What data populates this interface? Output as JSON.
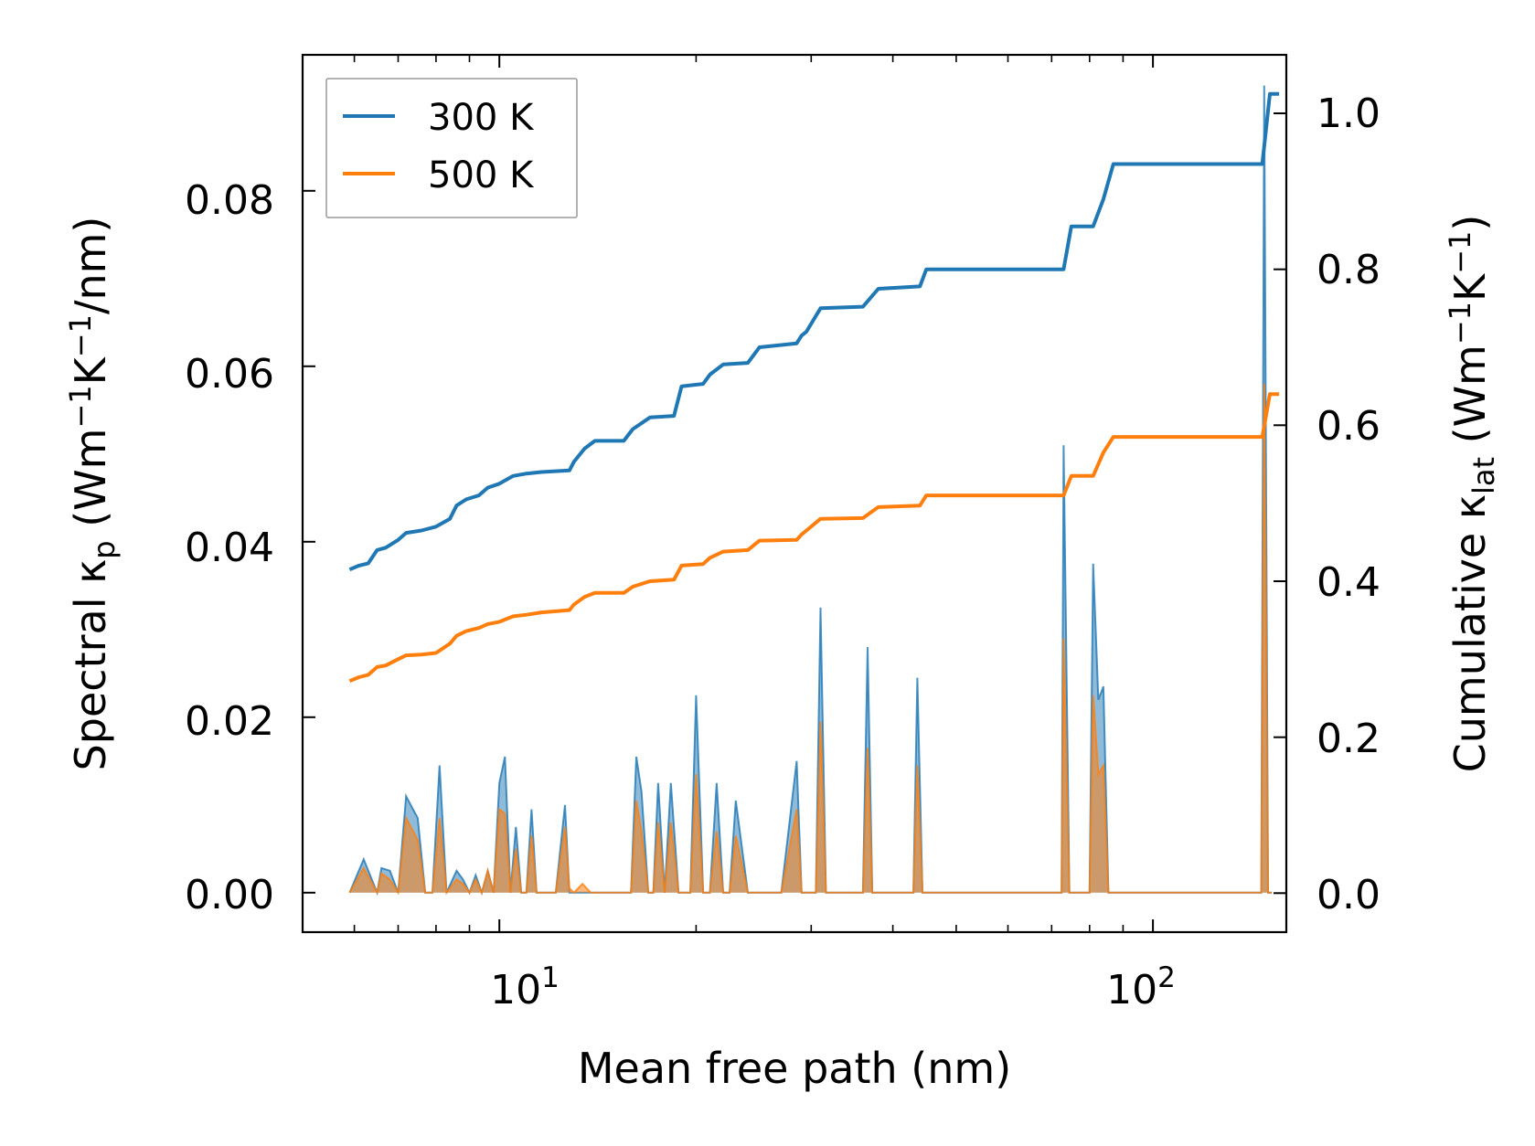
{
  "chart_data": {
    "type": "line",
    "xscale": "log",
    "xlabel": "Mean free path (nm)",
    "ylabel_left": "Spectral κp (Wm−1K−1/nm)",
    "ylabel_right": "Cumulative κlat (Wm−1K−1)",
    "xlim": [
      5,
      160
    ],
    "ylim_left": [
      -0.0045,
      0.0955
    ],
    "ylim_right": [
      -0.05,
      1.075
    ],
    "x_ticks": [
      10,
      100
    ],
    "x_tick_labels": [
      "10",
      "1",
      "10",
      "2"
    ],
    "y_left_ticks": [
      "0.00",
      "0.02",
      "0.04",
      "0.06",
      "0.08"
    ],
    "y_left_tick_values": [
      0,
      0.02,
      0.04,
      0.06,
      0.08
    ],
    "y_right_ticks": [
      "0.0",
      "0.2",
      "0.4",
      "0.6",
      "0.8",
      "1.0"
    ],
    "y_right_tick_values": [
      0,
      0.2,
      0.4,
      0.6,
      0.8,
      1.0
    ],
    "legend": {
      "placement": "top-left",
      "entries": [
        "300 K",
        "500 K"
      ]
    },
    "colors": {
      "300K": "#1f77b4",
      "500K": "#ff7f0e"
    },
    "cumulative": [
      {
        "name": "300 K",
        "x": [
          5.9,
          6.1,
          6.3,
          6.5,
          6.7,
          7.0,
          7.2,
          7.6,
          8.0,
          8.4,
          8.6,
          8.9,
          9.3,
          9.6,
          10.0,
          10.5,
          11.0,
          11.6,
          12.8,
          13.0,
          13.5,
          14.0,
          15.5,
          16.0,
          17.0,
          18.5,
          19.0,
          20.5,
          21.0,
          22.0,
          24.0,
          25.0,
          28.5,
          29.0,
          29.5,
          31.0,
          36.0,
          38.0,
          44.0,
          45.0,
          73.0,
          75.0,
          81.0,
          84.0,
          87.0,
          147.0,
          151.0,
          156.0
        ],
        "y": [
          0.415,
          0.42,
          0.423,
          0.44,
          0.443,
          0.453,
          0.462,
          0.465,
          0.47,
          0.48,
          0.497,
          0.505,
          0.51,
          0.52,
          0.525,
          0.535,
          0.538,
          0.54,
          0.542,
          0.553,
          0.57,
          0.58,
          0.58,
          0.595,
          0.61,
          0.612,
          0.65,
          0.653,
          0.665,
          0.678,
          0.68,
          0.7,
          0.705,
          0.715,
          0.72,
          0.75,
          0.752,
          0.775,
          0.778,
          0.8,
          0.8,
          0.855,
          0.855,
          0.89,
          0.935,
          0.935,
          1.025,
          1.025
        ]
      },
      {
        "name": "500 K",
        "x": [
          5.9,
          6.1,
          6.3,
          6.5,
          6.7,
          7.0,
          7.2,
          7.6,
          8.0,
          8.4,
          8.6,
          8.9,
          9.3,
          9.6,
          10.0,
          10.5,
          11.0,
          11.6,
          12.8,
          13.0,
          13.5,
          14.0,
          15.5,
          16.0,
          17.0,
          18.5,
          19.0,
          20.5,
          21.0,
          22.0,
          24.0,
          25.0,
          28.5,
          29.0,
          29.5,
          31.0,
          36.0,
          38.0,
          44.0,
          45.0,
          73.0,
          75.0,
          81.0,
          84.0,
          87.0,
          147.0,
          151.0,
          156.0
        ],
        "y": [
          0.272,
          0.277,
          0.28,
          0.29,
          0.292,
          0.3,
          0.305,
          0.306,
          0.308,
          0.32,
          0.33,
          0.336,
          0.34,
          0.345,
          0.348,
          0.355,
          0.357,
          0.36,
          0.363,
          0.37,
          0.38,
          0.385,
          0.385,
          0.393,
          0.4,
          0.402,
          0.42,
          0.422,
          0.43,
          0.438,
          0.44,
          0.452,
          0.453,
          0.46,
          0.465,
          0.48,
          0.481,
          0.495,
          0.497,
          0.51,
          0.51,
          0.535,
          0.535,
          0.565,
          0.585,
          0.585,
          0.64,
          0.64
        ]
      }
    ],
    "spectral": [
      {
        "name": "300 K",
        "x": [
          5.9,
          6.2,
          6.5,
          6.6,
          6.8,
          7.0,
          7.2,
          7.5,
          7.7,
          7.9,
          8.1,
          8.3,
          8.6,
          8.8,
          9.0,
          9.2,
          9.4,
          9.6,
          9.8,
          10.0,
          10.2,
          10.4,
          10.6,
          10.8,
          11.0,
          11.2,
          11.4,
          11.6,
          11.9,
          12.2,
          12.6,
          12.8,
          13.0,
          13.4,
          13.8,
          14.2,
          14.6,
          15.0,
          15.5,
          15.9,
          16.2,
          16.5,
          16.9,
          17.2,
          17.5,
          17.9,
          18.3,
          18.8,
          19.2,
          19.6,
          20.0,
          20.5,
          21.0,
          21.5,
          22.0,
          22.5,
          23.0,
          24.0,
          25.0,
          26.0,
          27.0,
          28.5,
          29.0,
          29.5,
          30.5,
          31.0,
          31.6,
          33.0,
          35.0,
          36.0,
          36.6,
          37.2,
          38.0,
          41.0,
          43.0,
          43.6,
          44.4,
          46.0,
          70.0,
          72.5,
          73.0,
          74.5,
          76.0,
          80.0,
          81.0,
          82.5,
          84.0,
          85.5,
          87.0,
          89.0,
          143.0,
          146.5,
          148.0,
          150.0,
          152.0
        ],
        "y": [
          0.0,
          0.0038,
          0.0,
          0.0028,
          0.0025,
          0.0,
          0.011,
          0.0085,
          0.0,
          0.0,
          0.0145,
          0.0,
          0.0025,
          0.0015,
          0.0,
          0.002,
          0.0,
          0.0025,
          0.0,
          0.0125,
          0.0155,
          0.0,
          0.0075,
          0.0,
          0.0,
          0.0095,
          0.0,
          0.0,
          0.0,
          0.0,
          0.01,
          0.0,
          0.0,
          0.0,
          0.0,
          0.0,
          0.0,
          0.0,
          0.0,
          0.0,
          0.0155,
          0.0115,
          0.0,
          0.0,
          0.0125,
          0.0,
          0.0125,
          0.0,
          0.0,
          0.0,
          0.0225,
          0.0,
          0.0,
          0.0125,
          0.0,
          0.0,
          0.0105,
          0.0,
          0.0,
          0.0,
          0.0,
          0.015,
          0.0,
          0.0,
          0.0,
          0.0325,
          0.0,
          0.0,
          0.0,
          0.0,
          0.028,
          0.0,
          0.0,
          0.0,
          0.0,
          0.0245,
          0.0,
          0.0,
          0.0,
          0.0,
          0.051,
          0.0,
          0.0,
          0.0,
          0.0375,
          0.022,
          0.0235,
          0.0,
          0.0,
          0.0,
          0.0,
          0.0,
          0.092,
          0.0,
          0.0
        ]
      },
      {
        "name": "500 K",
        "x": [
          5.9,
          6.2,
          6.5,
          6.6,
          6.8,
          7.0,
          7.2,
          7.5,
          7.7,
          7.9,
          8.1,
          8.3,
          8.6,
          8.8,
          9.0,
          9.2,
          9.4,
          9.6,
          9.8,
          10.0,
          10.2,
          10.4,
          10.6,
          10.8,
          11.0,
          11.2,
          11.4,
          11.6,
          11.9,
          12.2,
          12.6,
          12.8,
          13.0,
          13.4,
          13.8,
          14.2,
          14.6,
          15.0,
          15.5,
          15.9,
          16.2,
          16.5,
          16.9,
          17.2,
          17.5,
          17.9,
          18.3,
          18.8,
          19.2,
          19.6,
          20.0,
          20.5,
          21.0,
          21.5,
          22.0,
          22.5,
          23.0,
          24.0,
          25.0,
          26.0,
          27.0,
          28.5,
          29.0,
          29.5,
          30.5,
          31.0,
          31.6,
          33.0,
          35.0,
          36.0,
          36.6,
          37.2,
          38.0,
          41.0,
          43.0,
          43.6,
          44.4,
          46.0,
          70.0,
          72.5,
          73.0,
          74.5,
          76.0,
          80.0,
          81.0,
          82.5,
          84.0,
          85.5,
          87.0,
          89.0,
          143.0,
          146.5,
          148.0,
          150.0,
          152.0
        ],
        "y": [
          0.0,
          0.0028,
          0.0,
          0.0022,
          0.0015,
          0.0,
          0.0085,
          0.006,
          0.0,
          0.0,
          0.0085,
          0.0,
          0.0015,
          0.001,
          0.0,
          0.0015,
          0.0,
          0.0025,
          0.0,
          0.0095,
          0.009,
          0.0,
          0.005,
          0.0,
          0.0,
          0.0065,
          0.0,
          0.0,
          0.0,
          0.0,
          0.0075,
          0.0005,
          0.0,
          0.001,
          0.0,
          0.0,
          0.0,
          0.0,
          0.0,
          0.0,
          0.0105,
          0.007,
          0.0,
          0.0,
          0.008,
          0.0,
          0.008,
          0.0,
          0.0,
          0.0,
          0.0135,
          0.0,
          0.0,
          0.007,
          0.0,
          0.0,
          0.0065,
          0.0,
          0.0,
          0.0,
          0.0,
          0.0095,
          0.0,
          0.0,
          0.0,
          0.0195,
          0.0,
          0.0,
          0.0,
          0.0,
          0.0165,
          0.0,
          0.0,
          0.0,
          0.0,
          0.0145,
          0.0,
          0.0,
          0.0,
          0.0,
          0.029,
          0.0,
          0.0,
          0.0,
          0.0225,
          0.0135,
          0.0145,
          0.0,
          0.0,
          0.0,
          0.0,
          0.0,
          0.058,
          0.0,
          0.0
        ]
      }
    ]
  }
}
